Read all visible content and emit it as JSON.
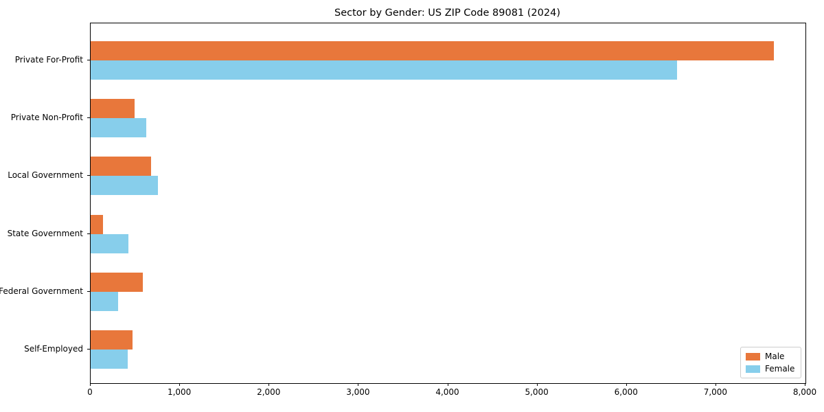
{
  "chart_data": {
    "type": "bar",
    "orientation": "horizontal",
    "title": "Sector by Gender: US ZIP Code 89081 (2024)",
    "categories": [
      "Private For-Profit",
      "Private Non-Profit",
      "Local Government",
      "State Government",
      "Federal Government",
      "Self-Employed"
    ],
    "series": [
      {
        "name": "Male",
        "color": "#e8773b",
        "values": [
          7650,
          490,
          680,
          135,
          585,
          465
        ]
      },
      {
        "name": "Female",
        "color": "#87ceeb",
        "values": [
          6560,
          625,
          755,
          425,
          305,
          415
        ]
      }
    ],
    "xlim": [
      0,
      8000
    ],
    "x_ticks": [
      0,
      1000,
      2000,
      3000,
      4000,
      5000,
      6000,
      7000,
      8000
    ],
    "x_tick_labels": [
      "0",
      "1,000",
      "2,000",
      "3,000",
      "4,000",
      "5,000",
      "6,000",
      "7,000",
      "8,000"
    ],
    "legend": {
      "position": "lower-right",
      "entries": [
        "Male",
        "Female"
      ]
    },
    "grid": false,
    "axis_color": "#000000"
  }
}
